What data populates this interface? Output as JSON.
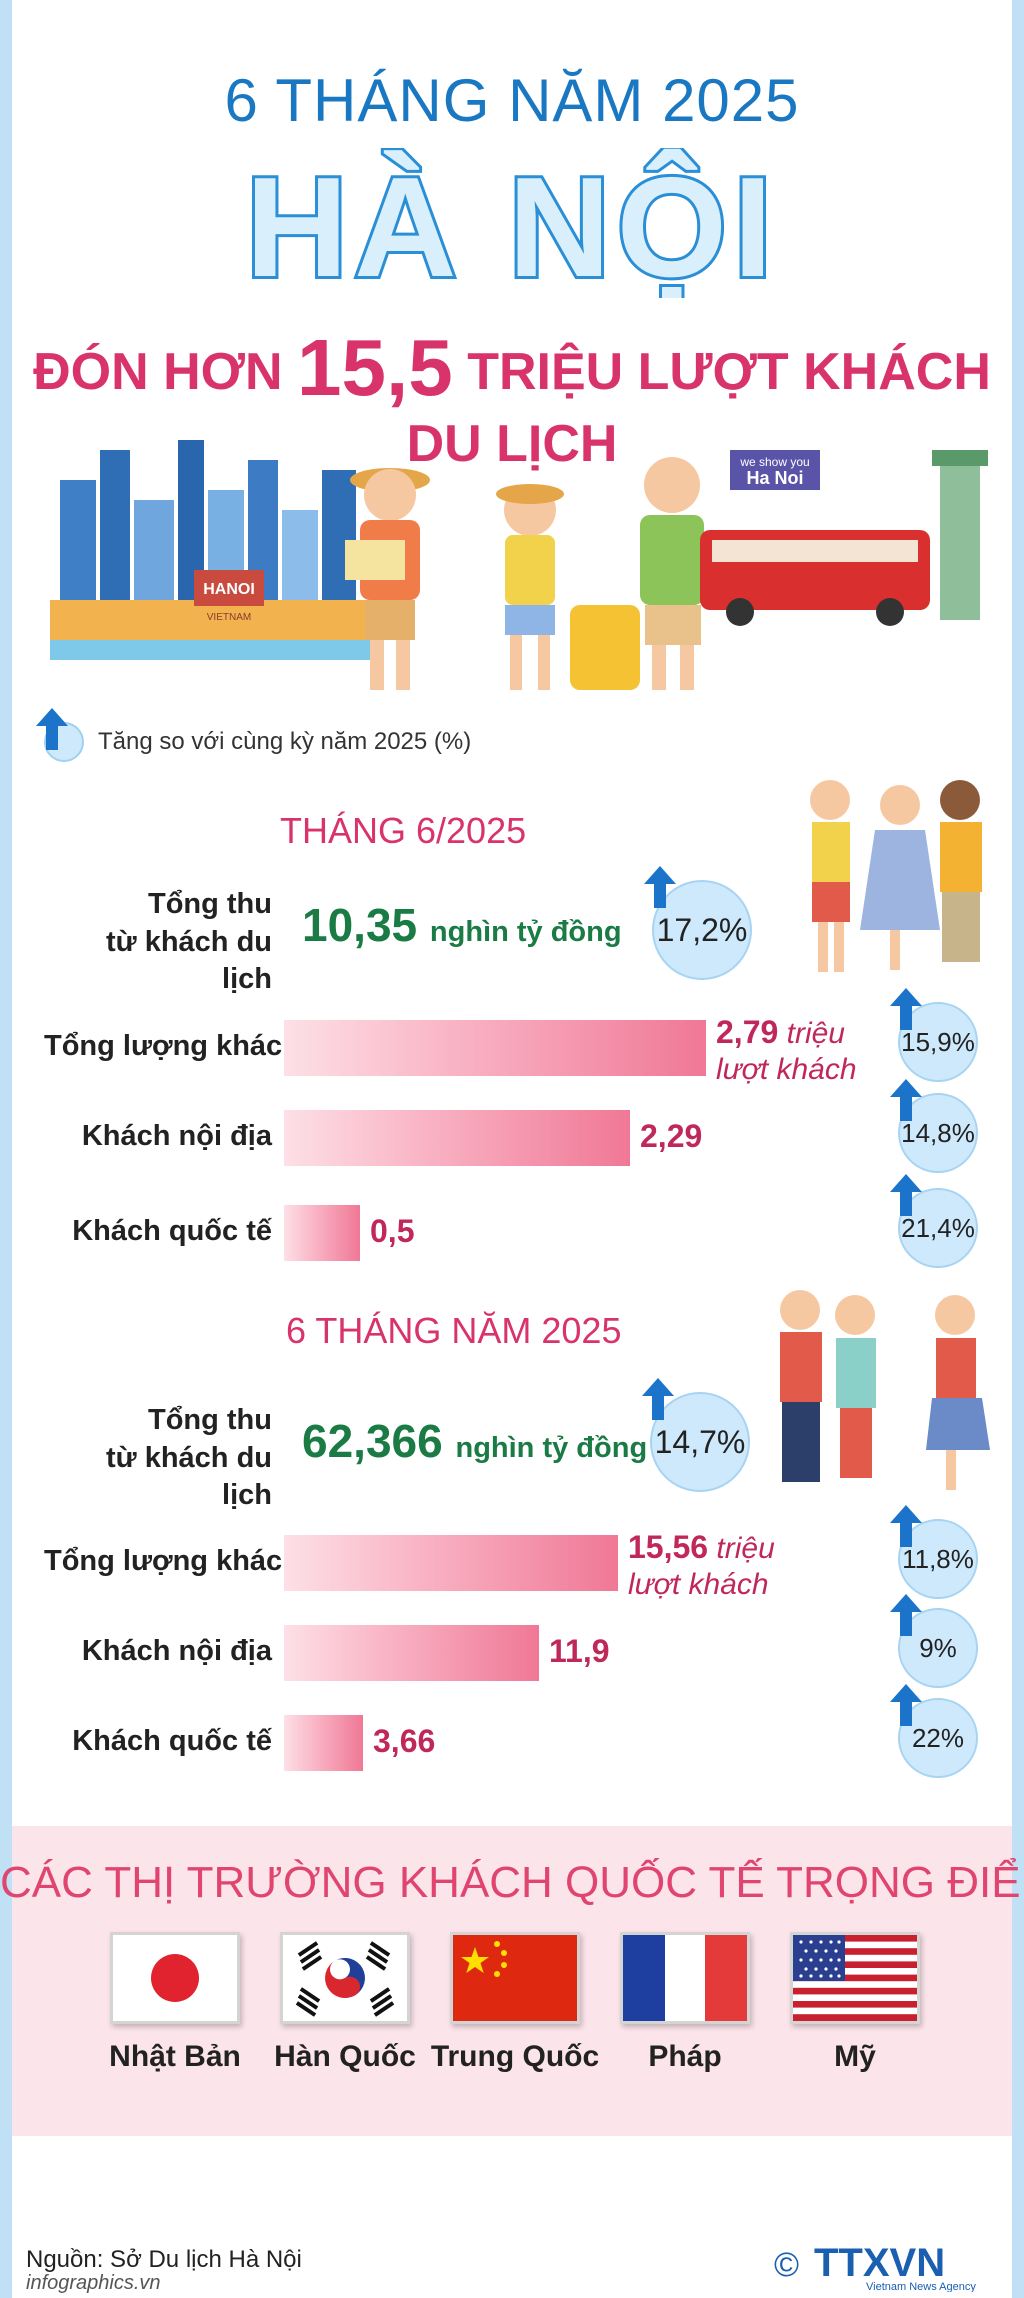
{
  "header": {
    "eyebrow": "6 THÁNG NĂM 2025",
    "title": "HÀ NỘI",
    "subtitle_pre": "ĐÓN HƠN",
    "subtitle_number": "15,5",
    "subtitle_post": "TRIỆU  LƯỢT KHÁCH DU LỊCH"
  },
  "illustration": {
    "city_logo": "HANOI",
    "city_logo_sub": "VIETNAM",
    "bus_tagline": "we show you",
    "bus_name": "Ha Noi"
  },
  "legend": {
    "icon": "arrow-up-icon",
    "text": "Tăng so với cùng kỳ năm 2025 (%)"
  },
  "colors": {
    "accent_blue": "#1a78c2",
    "accent_pink": "#d8336a",
    "revenue_green": "#1a7b45",
    "bar_pink": "#f07896",
    "badge_blue": "#cde9fb",
    "arrow_blue": "#1b74c9"
  },
  "chart_data": [
    {
      "type": "bar",
      "orientation": "horizontal",
      "section_title": "THÁNG 6/2025",
      "revenue": {
        "label_line1": "Tổng thu",
        "label_line2": "từ khách du lịch",
        "value": "10,35",
        "unit": "nghìn tỷ đồng",
        "growth": "17,2%"
      },
      "categories": [
        "Tổng lượng khách",
        "Khách nội địa",
        "Khách quốc tế"
      ],
      "values": [
        2.79,
        2.29,
        0.5
      ],
      "value_labels": [
        "2,79",
        "2,29",
        "0,5"
      ],
      "unit_line1": "triệu",
      "unit_line2": "lượt khách",
      "growth": [
        "15,9%",
        "14,8%",
        "21,4%"
      ],
      "xlim": [
        0,
        2.79
      ]
    },
    {
      "type": "bar",
      "orientation": "horizontal",
      "section_title": "6 THÁNG NĂM 2025",
      "revenue": {
        "label_line1": "Tổng thu",
        "label_line2": "từ khách du lịch",
        "value": "62,366",
        "unit": "nghìn tỷ đồng",
        "growth": "14,7%"
      },
      "categories": [
        "Tổng lượng khách",
        "Khách nội địa",
        "Khách quốc tế"
      ],
      "values": [
        15.56,
        11.9,
        3.66
      ],
      "value_labels": [
        "15,56",
        "11,9",
        "3,66"
      ],
      "unit_line1": "triệu",
      "unit_line2": "lượt khách",
      "growth": [
        "11,8%",
        "9%",
        "22%"
      ],
      "xlim": [
        0,
        15.56
      ]
    }
  ],
  "markets": {
    "title": "CÁC THỊ TRƯỜNG KHÁCH QUỐC TẾ TRỌNG ĐIỂM",
    "items": [
      {
        "name": "Nhật Bản",
        "flag": "japan-flag-icon"
      },
      {
        "name": "Hàn Quốc",
        "flag": "south-korea-flag-icon"
      },
      {
        "name": "Trung Quốc",
        "flag": "china-flag-icon"
      },
      {
        "name": "Pháp",
        "flag": "france-flag-icon"
      },
      {
        "name": "Mỹ",
        "flag": "usa-flag-icon"
      }
    ]
  },
  "footer": {
    "source": "Nguồn: Sở Du lịch Hà Nội",
    "website": "infographics.vn",
    "copyright": "©",
    "brand": "TTXVN",
    "brand_sub": "Vietnam News Agency"
  }
}
